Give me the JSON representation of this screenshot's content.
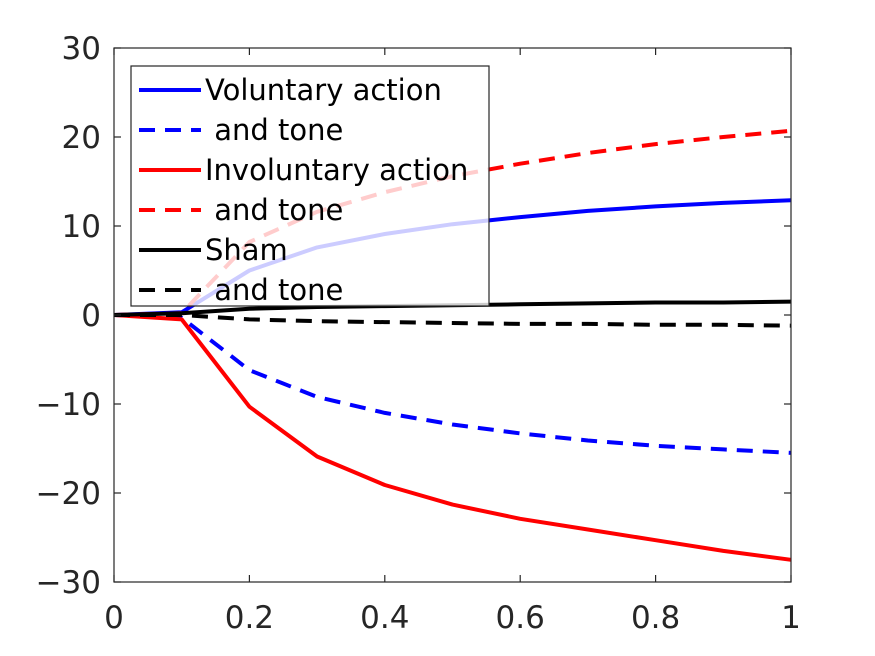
{
  "chart_data": {
    "type": "line",
    "title": "",
    "xlabel": "",
    "ylabel": "",
    "xlim": [
      0,
      1
    ],
    "ylim": [
      -30,
      30
    ],
    "x": [
      0,
      0.1,
      0.2,
      0.3,
      0.4,
      0.5,
      0.6,
      0.7,
      0.8,
      0.9,
      1.0
    ],
    "x_ticks": [
      "0",
      "0.2",
      "0.4",
      "0.6",
      "0.8",
      "1"
    ],
    "x_tick_values": [
      0,
      0.2,
      0.4,
      0.6,
      0.8,
      1
    ],
    "y_ticks": [
      "30",
      "20",
      "10",
      "0",
      "−10",
      "−20",
      "−30"
    ],
    "y_tick_values": [
      30,
      20,
      10,
      0,
      -10,
      -20,
      -30
    ],
    "grid": false,
    "legend_placement": "top-left",
    "series": [
      {
        "name": "Voluntary action",
        "color": "#0000ff",
        "dash": "solid",
        "values": [
          0,
          0.3,
          5.0,
          7.6,
          9.1,
          10.2,
          11.0,
          11.7,
          12.2,
          12.6,
          12.9
        ]
      },
      {
        "name": " and tone",
        "color": "#0000ff",
        "dash": "dashed",
        "values": [
          0,
          -0.3,
          -6.2,
          -9.2,
          -11.0,
          -12.3,
          -13.3,
          -14.1,
          -14.7,
          -15.1,
          -15.5
        ]
      },
      {
        "name": "Involuntary action",
        "color": "#ff0000",
        "dash": "solid",
        "values": [
          0,
          -0.5,
          -10.3,
          -15.9,
          -19.1,
          -21.3,
          -22.9,
          -24.1,
          -25.3,
          -26.5,
          -27.5
        ]
      },
      {
        "name": " and tone",
        "color": "#ff0000",
        "dash": "dashed",
        "values": [
          0,
          0.2,
          8.2,
          11.6,
          13.8,
          15.6,
          17.0,
          18.2,
          19.2,
          20.0,
          20.7
        ]
      },
      {
        "name": "Sham",
        "color": "#000000",
        "dash": "solid",
        "values": [
          0,
          0.2,
          0.7,
          0.9,
          1.0,
          1.1,
          1.2,
          1.3,
          1.4,
          1.4,
          1.5
        ]
      },
      {
        "name": " and tone",
        "color": "#000000",
        "dash": "dashed",
        "values": [
          0,
          0.0,
          -0.5,
          -0.7,
          -0.8,
          -0.9,
          -1.0,
          -1.0,
          -1.1,
          -1.1,
          -1.2
        ]
      }
    ]
  }
}
